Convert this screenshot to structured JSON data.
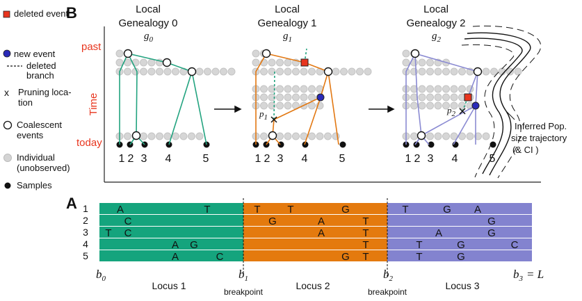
{
  "panel_b": {
    "label": "B",
    "legend": [
      [
        "deleted event"
      ],
      [
        "new event"
      ],
      [
        "deleted",
        "branch"
      ],
      [
        "Pruning loca-",
        "tion"
      ],
      [
        "Coalescent",
        "events"
      ],
      [
        "Individual",
        "(unobserved)"
      ],
      [
        "Samples"
      ]
    ],
    "time_axis": {
      "top": "past",
      "title": "Time",
      "bottom": "today"
    },
    "genealogies": [
      {
        "title": [
          "Local",
          "Genealogy 0"
        ],
        "symbol": "g",
        "subscript": "0",
        "samples": [
          "1",
          "2",
          "3",
          "4",
          "5"
        ]
      },
      {
        "title": [
          "Local",
          "Genealogy 1"
        ],
        "symbol": "g",
        "subscript": "1",
        "samples": [
          "1",
          "2",
          "3",
          "4",
          "5"
        ]
      },
      {
        "title": [
          "Local",
          "Genealogy 2"
        ],
        "symbol": "g",
        "subscript": "2",
        "samples": [
          "1",
          "2",
          "3",
          "4",
          "5"
        ]
      }
    ],
    "pruning_labels": [
      {
        "symbol": "p",
        "subscript": "1"
      },
      {
        "symbol": "p",
        "subscript": "2"
      }
    ],
    "annotation": [
      "Inferred Pop.",
      "size trajectory",
      "(& CI )"
    ]
  },
  "panel_a": {
    "label": "A",
    "row_labels": [
      "1",
      "2",
      "3",
      "4",
      "5"
    ],
    "rows": [
      [
        "A",
        "T",
        "T",
        "T",
        "G",
        "T",
        "G",
        "A"
      ],
      [
        "C",
        "G",
        "A",
        "T",
        "G"
      ],
      [
        "T",
        "C",
        "A",
        "T",
        "A",
        "G"
      ],
      [
        "A",
        "G",
        "T",
        "T",
        "G",
        "C"
      ],
      [
        "A",
        "C",
        "G",
        "T",
        "T",
        "G"
      ]
    ],
    "boundaries": [
      {
        "symbol": "b",
        "subscript": "0"
      },
      {
        "symbol": "b",
        "subscript": "1"
      },
      {
        "symbol": "b",
        "subscript": "2"
      },
      {
        "symbol": "b",
        "subscript": "3",
        "suffix": "= L"
      }
    ],
    "loci": [
      "Locus 1",
      "Locus 2",
      "Locus 3"
    ],
    "breakpoints": [
      "breakpoint",
      "breakpoint"
    ]
  }
}
